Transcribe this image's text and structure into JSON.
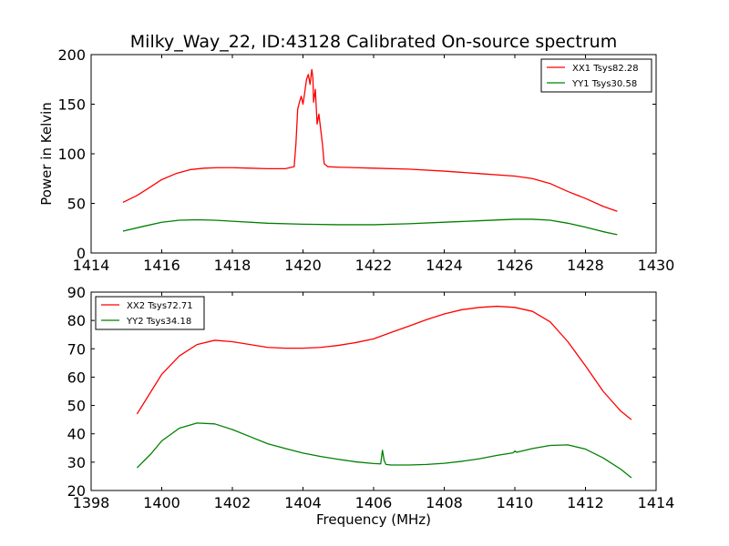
{
  "chart_data": [
    {
      "type": "line",
      "title": "Milky_Way_22, ID:43128 Calibrated On-source spectrum",
      "xlabel": "",
      "ylabel": "Power in Kelvin",
      "xlim": [
        1414,
        1430
      ],
      "ylim": [
        0,
        200
      ],
      "xticks": [
        1414,
        1416,
        1418,
        1420,
        1422,
        1424,
        1426,
        1428,
        1430
      ],
      "yticks": [
        0,
        50,
        100,
        150,
        200
      ],
      "legend_position": "top-right",
      "grid": false,
      "series": [
        {
          "name": "XX1 Tsys82.28",
          "color": "#ff0000",
          "x": [
            1414.9,
            1415.3,
            1415.7,
            1416.0,
            1416.4,
            1416.8,
            1417.2,
            1417.6,
            1418.0,
            1418.5,
            1419.0,
            1419.5,
            1419.75,
            1419.8,
            1419.85,
            1419.9,
            1419.95,
            1420.0,
            1420.05,
            1420.1,
            1420.15,
            1420.2,
            1420.25,
            1420.28,
            1420.3,
            1420.35,
            1420.4,
            1420.45,
            1420.5,
            1420.55,
            1420.6,
            1420.7,
            1421.0,
            1421.5,
            1422.0,
            1423.0,
            1424.0,
            1425.0,
            1426.0,
            1426.5,
            1427.0,
            1427.5,
            1428.0,
            1428.5,
            1428.9
          ],
          "y": [
            51,
            58,
            67,
            74,
            80,
            84,
            85.5,
            86,
            86,
            85.5,
            85,
            85,
            87,
            110,
            145,
            152,
            158,
            150,
            162,
            175,
            180,
            170,
            185,
            177,
            152,
            165,
            130,
            140,
            125,
            110,
            90,
            87,
            86.5,
            86,
            85.5,
            84.5,
            82.5,
            80,
            77.5,
            75,
            70,
            62,
            55,
            47,
            42
          ]
        },
        {
          "name": "YY1 Tsys30.58",
          "color": "#008000",
          "x": [
            1414.9,
            1415.5,
            1416.0,
            1416.5,
            1417.0,
            1417.5,
            1418.0,
            1419.0,
            1420.0,
            1421.0,
            1422.0,
            1423.0,
            1424.0,
            1425.0,
            1426.0,
            1426.5,
            1427.0,
            1427.5,
            1428.0,
            1428.5,
            1428.9
          ],
          "y": [
            22,
            27,
            31,
            33,
            33.5,
            33,
            32,
            30,
            29,
            28.5,
            28.5,
            29.5,
            31,
            32.5,
            34,
            34,
            33,
            30,
            26,
            21.5,
            18.5
          ]
        }
      ]
    },
    {
      "type": "line",
      "title": "",
      "xlabel": "Frequency (MHz)",
      "ylabel": "",
      "xlim": [
        1398,
        1414
      ],
      "ylim": [
        20,
        90
      ],
      "xticks": [
        1398,
        1400,
        1402,
        1404,
        1406,
        1408,
        1410,
        1412,
        1414
      ],
      "yticks": [
        20,
        30,
        40,
        50,
        60,
        70,
        80,
        90
      ],
      "legend_position": "top-left",
      "grid": false,
      "series": [
        {
          "name": "XX2 Tsys72.71",
          "color": "#ff0000",
          "x": [
            1399.3,
            1399.7,
            1400.0,
            1400.5,
            1401.0,
            1401.5,
            1402.0,
            1402.5,
            1403.0,
            1403.5,
            1404.0,
            1404.5,
            1405.0,
            1405.5,
            1406.0,
            1406.5,
            1407.0,
            1407.5,
            1408.0,
            1408.5,
            1409.0,
            1409.5,
            1410.0,
            1410.5,
            1411.0,
            1411.5,
            1412.0,
            1412.5,
            1413.0,
            1413.3
          ],
          "y": [
            47,
            55,
            61,
            67.5,
            71.5,
            73,
            72.5,
            71.5,
            70.5,
            70.2,
            70.2,
            70.5,
            71.2,
            72.2,
            73.5,
            75.8,
            78,
            80.3,
            82.3,
            83.8,
            84.6,
            85,
            84.6,
            83.2,
            79.5,
            72.5,
            64,
            55,
            48,
            45
          ]
        },
        {
          "name": "YY2 Tsys34.18",
          "color": "#008000",
          "x": [
            1399.3,
            1399.7,
            1400.0,
            1400.5,
            1401.0,
            1401.5,
            1402.0,
            1402.5,
            1403.0,
            1403.5,
            1404.0,
            1404.5,
            1405.0,
            1405.5,
            1406.0,
            1406.2,
            1406.25,
            1406.3,
            1406.35,
            1406.5,
            1407.0,
            1407.5,
            1408.0,
            1408.5,
            1409.0,
            1409.5,
            1409.95,
            1410.0,
            1410.05,
            1410.5,
            1411.0,
            1411.5,
            1412.0,
            1412.5,
            1413.0,
            1413.3
          ],
          "y": [
            28,
            33,
            37.5,
            42,
            43.8,
            43.5,
            41.5,
            39,
            36.5,
            34.8,
            33.2,
            32,
            31,
            30.1,
            29.5,
            29.4,
            34.2,
            30.5,
            29.2,
            29,
            29,
            29.2,
            29.6,
            30.3,
            31.2,
            32.4,
            33.3,
            33.9,
            33.5,
            34.8,
            35.9,
            36.1,
            34.6,
            31.5,
            27.5,
            24.5
          ]
        }
      ]
    }
  ]
}
